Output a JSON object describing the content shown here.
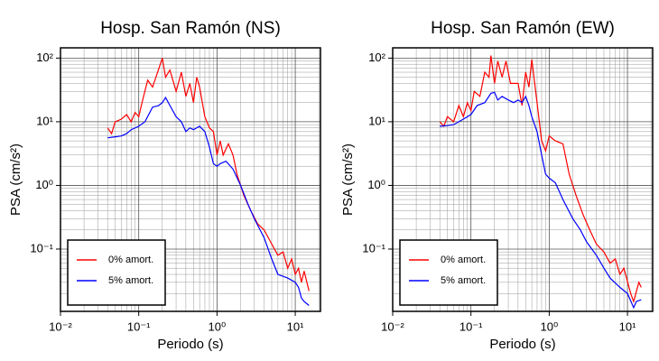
{
  "chart_data": [
    {
      "type": "line",
      "title": "Hosp. San Ramón (NS)",
      "x_label": "Periodo (s)",
      "y_label": "PSA (cm/s²)",
      "log_x": true,
      "log_y": true,
      "grid": true,
      "minor_grid": true,
      "legend": "lower left",
      "xlim": [
        0.01,
        21
      ],
      "ylim": [
        0.0105,
        145
      ],
      "xticks": [
        {
          "value": 0.01,
          "label": "10⁻²"
        },
        {
          "value": 0.1,
          "label": "10⁻¹"
        },
        {
          "value": 1,
          "label": "10⁰"
        },
        {
          "value": 10,
          "label": "10¹"
        }
      ],
      "yticks": [
        {
          "value": 0.1,
          "label": "10⁻¹"
        },
        {
          "value": 1,
          "label": "10⁰"
        },
        {
          "value": 10,
          "label": "10¹"
        },
        {
          "value": 100,
          "label": "10²"
        }
      ],
      "series": [
        {
          "name": "0% amort.",
          "color": "#ff0000",
          "x": [
            0.04,
            0.045,
            0.05,
            0.06,
            0.07,
            0.08,
            0.09,
            0.1,
            0.11,
            0.13,
            0.15,
            0.17,
            0.2,
            0.22,
            0.25,
            0.3,
            0.35,
            0.4,
            0.45,
            0.5,
            0.55,
            0.6,
            0.7,
            0.8,
            0.9,
            1.0,
            1.1,
            1.2,
            1.4,
            1.6,
            1.8,
            2.2,
            2.7,
            3.3,
            4,
            5,
            6,
            7,
            8,
            9,
            10,
            11,
            12,
            13,
            15
          ],
          "values": [
            8,
            6.5,
            10,
            11,
            13,
            10,
            14,
            12,
            20,
            45,
            35,
            55,
            100,
            50,
            65,
            30,
            60,
            25,
            40,
            20,
            50,
            35,
            12,
            8,
            7,
            3,
            5,
            3,
            4.5,
            3,
            1.5,
            0.7,
            0.4,
            0.25,
            0.2,
            0.12,
            0.08,
            0.09,
            0.05,
            0.07,
            0.04,
            0.05,
            0.03,
            0.045,
            0.022
          ]
        },
        {
          "name": "5% amort.",
          "color": "#0000ff",
          "x": [
            0.04,
            0.05,
            0.06,
            0.07,
            0.08,
            0.1,
            0.12,
            0.15,
            0.18,
            0.2,
            0.22,
            0.25,
            0.3,
            0.35,
            0.4,
            0.45,
            0.5,
            0.6,
            0.7,
            0.8,
            0.9,
            1.0,
            1.1,
            1.3,
            1.6,
            2,
            2.5,
            3,
            4,
            5,
            6,
            8,
            10,
            11,
            12,
            13,
            15
          ],
          "values": [
            5.6,
            5.8,
            6,
            6.5,
            7.5,
            8.5,
            10,
            17,
            18,
            20,
            24,
            18,
            12,
            10,
            7,
            8,
            7.5,
            8.5,
            7,
            4,
            2.2,
            2,
            2.2,
            2.4,
            1.8,
            1.0,
            0.5,
            0.3,
            0.15,
            0.07,
            0.04,
            0.035,
            0.03,
            0.025,
            0.017,
            0.015,
            0.013
          ]
        }
      ]
    },
    {
      "type": "line",
      "title": "Hosp. San Ramón (EW)",
      "x_label": "Periodo (s)",
      "y_label": "PSA (cm/s²)",
      "log_x": true,
      "log_y": true,
      "grid": true,
      "minor_grid": true,
      "legend": "lower left",
      "xlim": [
        0.01,
        21
      ],
      "ylim": [
        0.0105,
        145
      ],
      "xticks": [
        {
          "value": 0.01,
          "label": "10⁻²"
        },
        {
          "value": 0.1,
          "label": "10⁻¹"
        },
        {
          "value": 1,
          "label": "10⁰"
        },
        {
          "value": 10,
          "label": "10¹"
        }
      ],
      "yticks": [
        {
          "value": 0.1,
          "label": "10⁻¹"
        },
        {
          "value": 1,
          "label": "10⁰"
        },
        {
          "value": 10,
          "label": "10¹"
        },
        {
          "value": 100,
          "label": "10²"
        }
      ],
      "series": [
        {
          "name": "0% amort.",
          "color": "#ff0000",
          "x": [
            0.04,
            0.045,
            0.05,
            0.06,
            0.07,
            0.08,
            0.09,
            0.1,
            0.11,
            0.13,
            0.15,
            0.17,
            0.18,
            0.2,
            0.22,
            0.25,
            0.28,
            0.32,
            0.4,
            0.45,
            0.5,
            0.55,
            0.6,
            0.7,
            0.8,
            0.9,
            1.0,
            1.2,
            1.5,
            1.8,
            2.2,
            2.7,
            3.3,
            4,
            5,
            6,
            7,
            8,
            9,
            11,
            12,
            14,
            15
          ],
          "values": [
            10,
            8.5,
            12,
            10,
            18,
            12,
            20,
            15,
            30,
            25,
            60,
            50,
            110,
            40,
            90,
            50,
            90,
            40,
            40,
            18,
            60,
            35,
            95,
            20,
            5,
            3.5,
            6,
            5,
            4.5,
            1.5,
            0.7,
            0.35,
            0.2,
            0.12,
            0.09,
            0.06,
            0.07,
            0.04,
            0.05,
            0.02,
            0.015,
            0.03,
            0.025
          ]
        },
        {
          "name": "5% amort.",
          "color": "#0000ff",
          "x": [
            0.04,
            0.05,
            0.06,
            0.07,
            0.08,
            0.1,
            0.12,
            0.15,
            0.18,
            0.2,
            0.22,
            0.25,
            0.3,
            0.35,
            0.4,
            0.45,
            0.5,
            0.55,
            0.6,
            0.7,
            0.8,
            0.9,
            1,
            1.2,
            1.5,
            2,
            2.5,
            3,
            4,
            5,
            6,
            8,
            10,
            12,
            13,
            15
          ],
          "values": [
            8.5,
            8.7,
            9,
            10,
            11,
            13,
            18,
            20,
            28,
            29,
            22,
            25,
            22,
            20,
            22,
            20,
            25,
            18,
            12,
            7,
            3,
            1.5,
            1.3,
            1.1,
            0.6,
            0.3,
            0.2,
            0.13,
            0.08,
            0.05,
            0.035,
            0.025,
            0.02,
            0.012,
            0.015,
            0.016
          ]
        }
      ]
    }
  ]
}
